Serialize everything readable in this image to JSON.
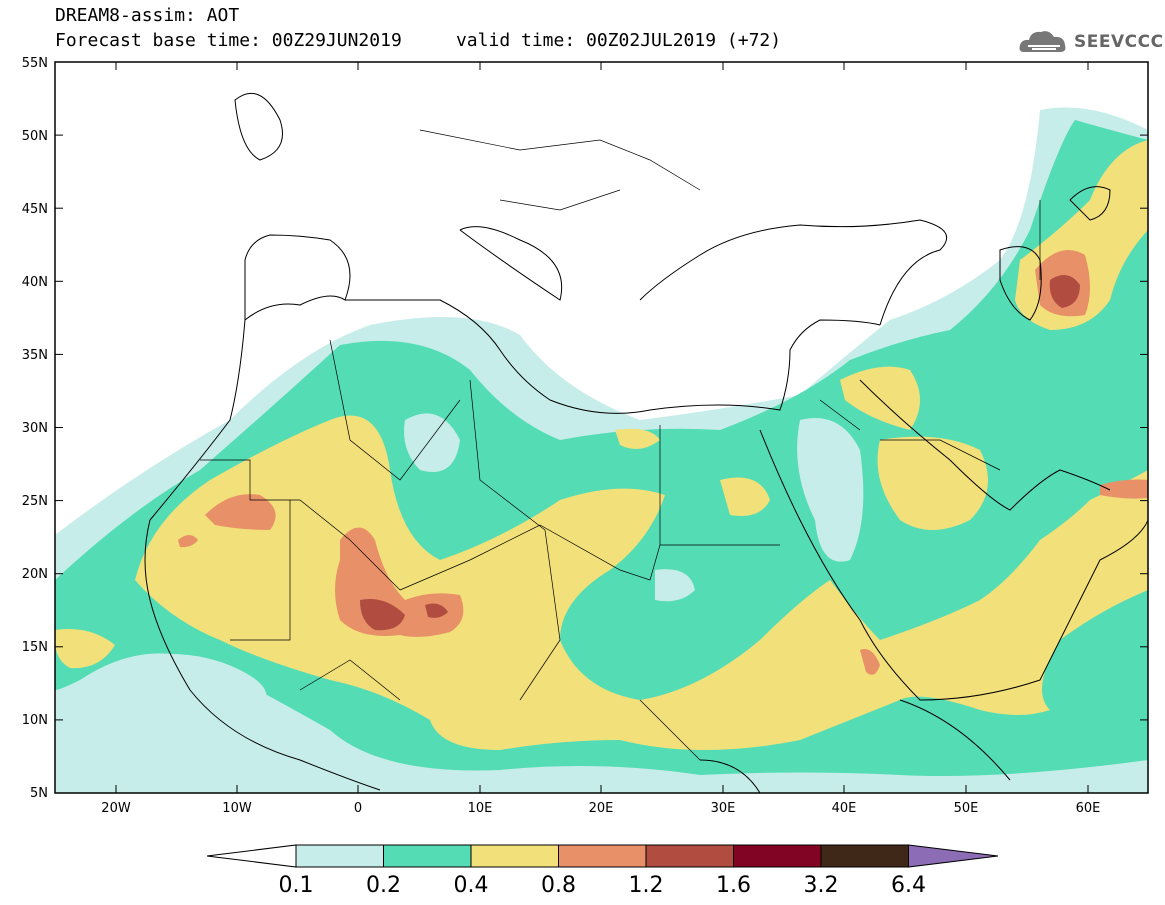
{
  "header": {
    "line1": "DREAM8-assim: AOT",
    "line2": "Forecast base time: 00Z29JUN2019     valid time: 00Z02JUL2019 (+72)"
  },
  "logo": {
    "text": "SEEVCCC",
    "icon": "cloud-icon"
  },
  "axes": {
    "lat_labels": [
      "55N",
      "50N",
      "45N",
      "40N",
      "35N",
      "30N",
      "25N",
      "20N",
      "15N",
      "10N",
      "5N"
    ],
    "lon_labels": [
      "20W",
      "10W",
      "0",
      "10E",
      "20E",
      "30E",
      "40E",
      "50E",
      "60E"
    ]
  },
  "colorbar": {
    "labels": [
      "0.1",
      "0.2",
      "0.4",
      "0.8",
      "1.2",
      "1.6",
      "3.2",
      "6.4"
    ],
    "colors": [
      "#ffffff",
      "#c6ede9",
      "#54dcb4",
      "#f2e07a",
      "#e89068",
      "#b04c40",
      "#820424",
      "#402818",
      "#8c6cb4"
    ]
  },
  "palette": {
    "c02": "#c6ede9",
    "c04": "#54dcb4",
    "c08": "#f2e07a",
    "c12": "#e89068",
    "c16": "#b04c40"
  }
}
